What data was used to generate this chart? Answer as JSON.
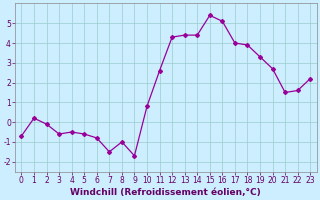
{
  "x": [
    0,
    1,
    2,
    3,
    4,
    5,
    6,
    7,
    8,
    9,
    10,
    11,
    12,
    13,
    14,
    15,
    16,
    17,
    18,
    19,
    20,
    21,
    22,
    23
  ],
  "y": [
    -0.7,
    0.2,
    -0.1,
    -0.6,
    -0.5,
    -0.6,
    -0.8,
    -1.5,
    -1.0,
    -1.7,
    0.8,
    2.6,
    4.3,
    4.4,
    4.4,
    5.4,
    5.1,
    4.0,
    3.9,
    3.3,
    2.7,
    1.5,
    1.6,
    2.2
  ],
  "line_color": "#990099",
  "marker": "D",
  "markersize": 2.0,
  "linewidth": 0.9,
  "bg_color": "#cceeff",
  "grid_color": "#99cccc",
  "xlabel": "Windchill (Refroidissement éolien,°C)",
  "xlabel_fontsize": 6.5,
  "tick_fontsize": 5.5,
  "xlim": [
    -0.5,
    23.5
  ],
  "ylim": [
    -2.5,
    6.0
  ],
  "yticks": [
    -2,
    -1,
    0,
    1,
    2,
    3,
    4,
    5
  ],
  "xticks": [
    0,
    1,
    2,
    3,
    4,
    5,
    6,
    7,
    8,
    9,
    10,
    11,
    12,
    13,
    14,
    15,
    16,
    17,
    18,
    19,
    20,
    21,
    22,
    23
  ]
}
